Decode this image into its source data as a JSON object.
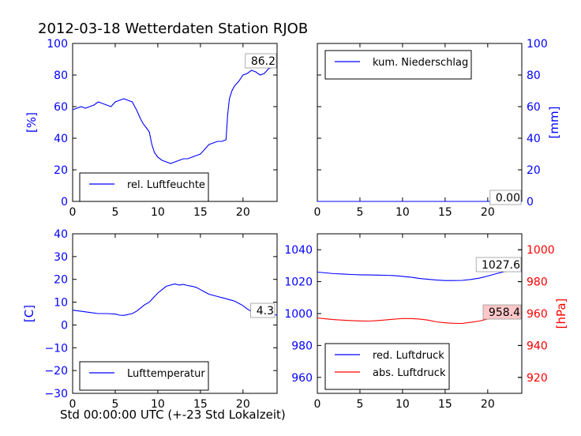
{
  "figure": {
    "title": "2012-03-18 Wetterdaten Station RJOB",
    "xcaption": "Std 00:00:00 UTC (+-23 Std Lokalzeit)"
  },
  "chart_data": [
    {
      "id": "humidity",
      "type": "line",
      "ylabel": "[%]",
      "ylim": [
        0,
        100
      ],
      "yticks": [
        0,
        20,
        40,
        60,
        80,
        100
      ],
      "xlim": [
        0,
        24
      ],
      "xticks": [
        0,
        5,
        10,
        15,
        20
      ],
      "ytick_color": "#0000ff",
      "legend": "bottom-left",
      "annotation": "86.2",
      "series": [
        {
          "name": "rel. Luftfeuchte",
          "color": "#0000ff",
          "x": [
            0,
            0.5,
            1,
            1.5,
            2,
            2.5,
            3,
            3.5,
            4,
            4.5,
            5,
            5.5,
            6,
            6.5,
            7,
            7.5,
            8,
            8.3,
            8.6,
            9,
            9.3,
            9.6,
            10,
            10.5,
            11,
            11.5,
            12,
            12.5,
            13,
            13.5,
            14,
            14.5,
            15,
            15.5,
            16,
            16.5,
            17,
            17.5,
            18,
            18.2,
            18.4,
            18.7,
            19,
            19.5,
            20,
            20.5,
            21,
            21.5,
            22,
            22.5,
            23,
            23.5,
            24
          ],
          "y": [
            58,
            59,
            60,
            59,
            60,
            61,
            63,
            62,
            61,
            60,
            63,
            64,
            65,
            64,
            63,
            58,
            52,
            49,
            47,
            44,
            36,
            31,
            28,
            26,
            25,
            24,
            25,
            26,
            27,
            27,
            28,
            29,
            30,
            33,
            36,
            37,
            38,
            38,
            39,
            55,
            65,
            70,
            73,
            76,
            80,
            81,
            83,
            82,
            80,
            81,
            84,
            85,
            86.2
          ]
        }
      ]
    },
    {
      "id": "precipitation",
      "type": "line",
      "ylabel": "[mm]",
      "ylim": [
        0,
        100
      ],
      "yticks": [
        0,
        20,
        40,
        60,
        80,
        100
      ],
      "xlim": [
        0,
        24
      ],
      "xticks": [
        0,
        5,
        10,
        15,
        20
      ],
      "ytick_color": "#0000ff",
      "legend": "top-left",
      "annotation": "0.00",
      "series": [
        {
          "name": "kum. Niederschlag",
          "color": "#0000ff",
          "x": [
            0,
            24
          ],
          "y": [
            0,
            0
          ]
        }
      ]
    },
    {
      "id": "temperature",
      "type": "line",
      "ylabel": "[C]",
      "ylim": [
        -30,
        40
      ],
      "yticks": [
        -30,
        -20,
        -10,
        0,
        10,
        20,
        30,
        40
      ],
      "xlim": [
        0,
        24
      ],
      "xticks": [
        0,
        5,
        10,
        15,
        20
      ],
      "ytick_color": "#0000ff",
      "legend": "bottom-left",
      "annotation": "4.3",
      "series": [
        {
          "name": "Lufttemperatur",
          "color": "#0000ff",
          "x": [
            0,
            1,
            2,
            3,
            4,
            5,
            5.5,
            6,
            7,
            7.5,
            8,
            8.5,
            9,
            9.5,
            10,
            10.5,
            11,
            11.5,
            12,
            12.5,
            13,
            13.5,
            14,
            14.5,
            15,
            15.5,
            16,
            16.5,
            17,
            17.5,
            18,
            18.5,
            19,
            19.5,
            20,
            20.5,
            21,
            21.5,
            22,
            23,
            24
          ],
          "y": [
            6.5,
            6,
            5.5,
            5,
            5,
            4.8,
            4.3,
            4.2,
            5,
            6,
            7.5,
            9,
            10,
            12,
            14,
            15.5,
            17,
            17.5,
            18,
            17.5,
            17.8,
            17.3,
            17,
            16.5,
            15.5,
            14.5,
            13.5,
            13,
            12.5,
            12,
            11.5,
            11,
            10.5,
            9.5,
            8.5,
            7,
            6,
            5.5,
            5.2,
            4.8,
            4.3
          ]
        }
      ]
    },
    {
      "id": "pressure",
      "type": "line",
      "ylabel": "[hPa]",
      "ylim": [
        950,
        1050
      ],
      "yticks": [
        960,
        980,
        1000,
        1020,
        1040
      ],
      "ylim_right": [
        910,
        1010
      ],
      "yticks_right": [
        920,
        940,
        960,
        980,
        1000
      ],
      "xlim": [
        0,
        24
      ],
      "xticks": [
        0,
        5,
        10,
        15,
        20
      ],
      "ytick_color": "#0000ff",
      "ytick_color_right": "#ff0000",
      "legend": "bottom-left",
      "annotations": [
        "1027.6",
        "958.4"
      ],
      "series": [
        {
          "name": "red. Luftdruck",
          "color": "#0000ff",
          "axis": "left",
          "x": [
            0,
            1,
            2,
            3,
            4,
            5,
            6,
            7,
            8,
            9,
            10,
            11,
            12,
            13,
            14,
            15,
            16,
            17,
            18,
            19,
            20,
            21,
            22,
            23,
            24
          ],
          "y": [
            1026,
            1025.5,
            1025,
            1024.8,
            1024.5,
            1024.3,
            1024.2,
            1024.1,
            1024,
            1023.8,
            1023.3,
            1022.8,
            1022,
            1021.5,
            1021,
            1020.7,
            1020.7,
            1020.8,
            1021.4,
            1022.2,
            1023.5,
            1025,
            1026.3,
            1027,
            1027.6
          ]
        },
        {
          "name": "abs. Luftdruck",
          "color": "#ff0000",
          "axis": "right",
          "x": [
            0,
            1,
            2,
            3,
            4,
            5,
            6,
            7,
            8,
            9,
            10,
            11,
            12,
            13,
            14,
            15,
            16,
            17,
            18,
            19,
            20,
            21,
            22,
            23,
            24
          ],
          "y": [
            957.3,
            956.7,
            956.2,
            955.9,
            955.6,
            955.4,
            955.3,
            955.6,
            956,
            956.5,
            956.9,
            956.9,
            956.6,
            955.9,
            954.8,
            954.2,
            953.9,
            953.8,
            954.5,
            955.3,
            956.6,
            957.6,
            958,
            958.2,
            958.4
          ]
        }
      ]
    }
  ]
}
